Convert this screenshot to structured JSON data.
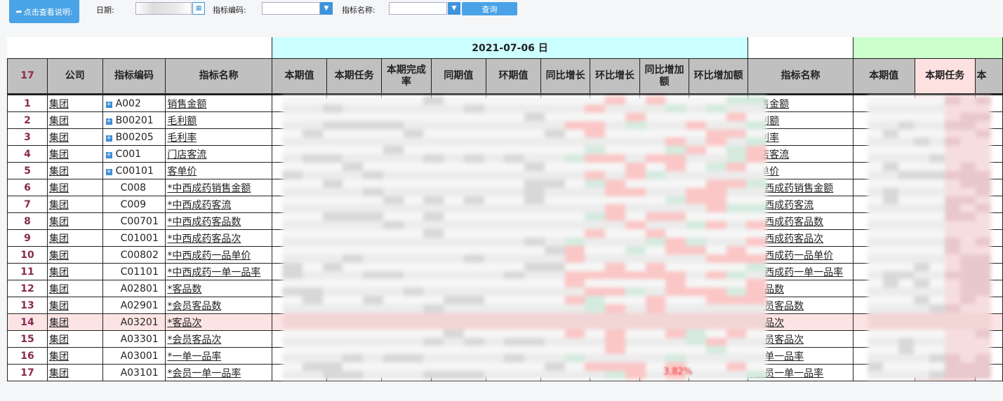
{
  "toolbar": {
    "help_label": "点击查看说明:",
    "date_label": "日期:",
    "code_label": "指标编码:",
    "name_label": "指标名称:",
    "query_label": "查询",
    "code_value": "",
    "name_value": ""
  },
  "table": {
    "row_count": "17",
    "group1": "2021-07-06 日",
    "headers": [
      "公司",
      "指标编码",
      "指标名称",
      "本期值",
      "本期任务",
      "本期完成率",
      "同期值",
      "环期值",
      "同比增长",
      "环比增长",
      "同比增加额",
      "环比增加额",
      "指标名称",
      "本期值",
      "本期任务",
      "本"
    ],
    "rows": [
      {
        "n": "1",
        "company": "集团",
        "code": "A002",
        "name": "销售金额",
        "expand": true
      },
      {
        "n": "2",
        "company": "集团",
        "code": "B00201",
        "name": "毛利额",
        "expand": true
      },
      {
        "n": "3",
        "company": "集团",
        "code": "B00205",
        "name": "毛利率",
        "expand": true
      },
      {
        "n": "4",
        "company": "集团",
        "code": "C001",
        "name": "门店客流",
        "expand": true
      },
      {
        "n": "5",
        "company": "集团",
        "code": "C00101",
        "name": "客单价",
        "expand": true
      },
      {
        "n": "6",
        "company": "集团",
        "code": "C008",
        "name": "*中西成药销售金额",
        "expand": false
      },
      {
        "n": "7",
        "company": "集团",
        "code": "C009",
        "name": "*中西成药客流",
        "expand": false
      },
      {
        "n": "8",
        "company": "集团",
        "code": "C00701",
        "name": "*中西成药客品数",
        "expand": false
      },
      {
        "n": "9",
        "company": "集团",
        "code": "C01001",
        "name": "*中西成药客品次",
        "expand": false
      },
      {
        "n": "10",
        "company": "集团",
        "code": "C00802",
        "name": "*中西成药一品单价",
        "expand": false
      },
      {
        "n": "11",
        "company": "集团",
        "code": "C01101",
        "name": "*中西成药一单一品率",
        "expand": false
      },
      {
        "n": "12",
        "company": "集团",
        "code": "A02801",
        "name": "*客品数",
        "expand": false
      },
      {
        "n": "13",
        "company": "集团",
        "code": "A02901",
        "name": "*会员客品数",
        "expand": false
      },
      {
        "n": "14",
        "company": "集团",
        "code": "A03201",
        "name": "*客品次",
        "expand": false,
        "highlight": true
      },
      {
        "n": "15",
        "company": "集团",
        "code": "A03301",
        "name": "*会员客品次",
        "expand": false
      },
      {
        "n": "16",
        "company": "集团",
        "code": "A03001",
        "name": "*一单一品率",
        "expand": false
      },
      {
        "n": "17",
        "company": "集团",
        "code": "A03101",
        "name": "*会员一单一品率",
        "expand": false
      }
    ],
    "visible_value": "3.82%"
  },
  "colors": {
    "accent": "#4aa3e6",
    "group1_bg": "#ccffff",
    "group2_bg": "#ccffcc",
    "task_bg": "#fde0e0"
  }
}
